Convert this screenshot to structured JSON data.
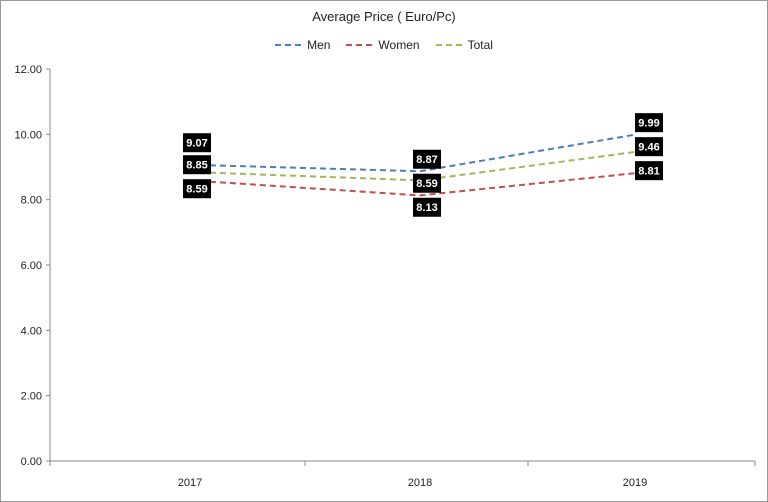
{
  "chart_data": {
    "type": "line",
    "title": "Average Price ( Euro/Pc)",
    "categories": [
      "2017",
      "2018",
      "2019"
    ],
    "series": [
      {
        "name": "Men",
        "values": [
          9.07,
          8.87,
          9.99
        ],
        "color": "#4a7ebb",
        "dashed": true,
        "labels": [
          "9.07",
          "8.87",
          "9.99"
        ]
      },
      {
        "name": "Women",
        "values": [
          8.59,
          8.13,
          8.81
        ],
        "color": "#c0504d",
        "dashed": true,
        "labels": [
          "8.59",
          "8.13",
          "8.81"
        ]
      },
      {
        "name": "Total",
        "values": [
          8.85,
          8.59,
          9.46
        ],
        "color": "#9bbb59",
        "dashed": true,
        "labels": [
          "8.85",
          "8.59",
          "9.46"
        ]
      }
    ],
    "ylim": [
      0,
      12
    ],
    "yticks": [
      "0.00",
      "2.00",
      "4.00",
      "6.00",
      "8.00",
      "10.00",
      "12.00"
    ],
    "xlabel": "",
    "ylabel": "",
    "grid": false,
    "legend_position": "top"
  }
}
